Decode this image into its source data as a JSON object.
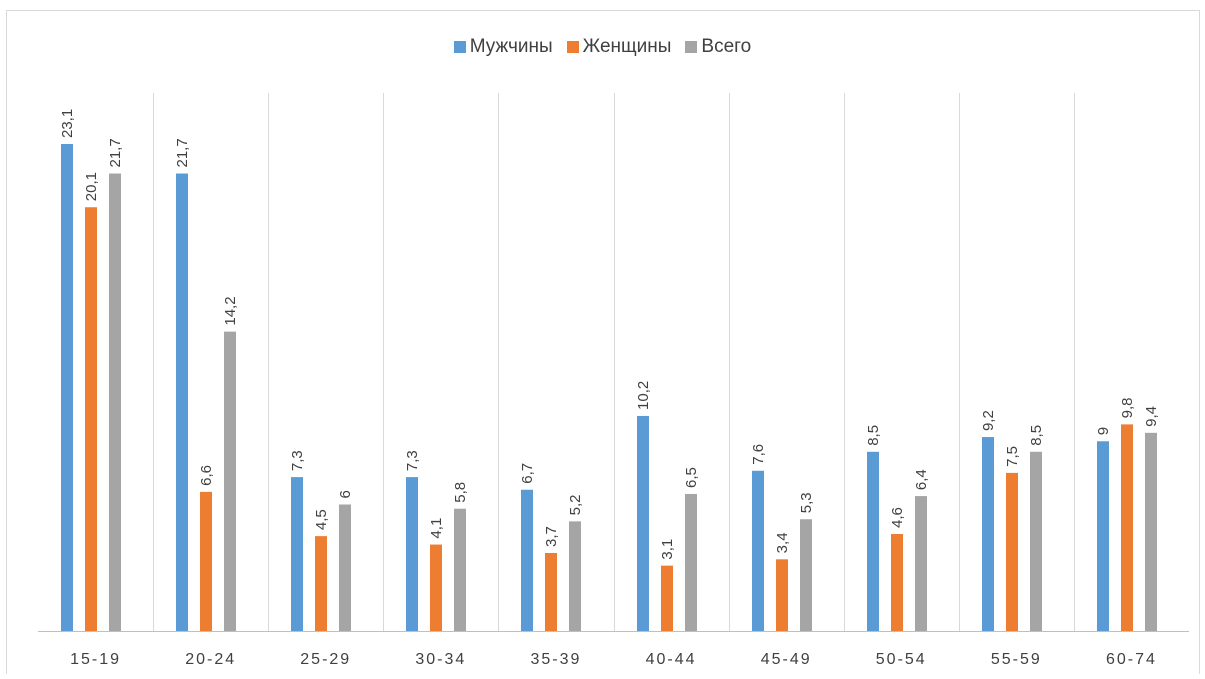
{
  "chart_data": {
    "type": "bar",
    "title": "",
    "xlabel": "",
    "ylabel": "",
    "categories": [
      "15-19",
      "20-24",
      "25-29",
      "30-34",
      "35-39",
      "40-44",
      "45-49",
      "50-54",
      "55-59",
      "60-74"
    ],
    "series": [
      {
        "name": "Мужчины",
        "color": "#5b9bd5",
        "values": [
          23.1,
          21.7,
          7.3,
          7.3,
          6.7,
          10.2,
          7.6,
          8.5,
          9.2,
          9
        ],
        "labels": [
          "23,1",
          "21,7",
          "7,3",
          "7,3",
          "6,7",
          "10,2",
          "7,6",
          "8,5",
          "9,2",
          "9"
        ]
      },
      {
        "name": "Женщины",
        "color": "#ed7d31",
        "values": [
          20.1,
          6.6,
          4.5,
          4.1,
          3.7,
          3.1,
          3.4,
          4.6,
          7.5,
          9.8
        ],
        "labels": [
          "20,1",
          "6,6",
          "4,5",
          "4,1",
          "3,7",
          "3,1",
          "3,4",
          "4,6",
          "7,5",
          "9,8"
        ]
      },
      {
        "name": "Всего",
        "color": "#a5a5a5",
        "values": [
          21.7,
          14.2,
          6,
          5.8,
          5.2,
          6.5,
          5.3,
          6.4,
          8.5,
          9.4
        ],
        "labels": [
          "21,7",
          "14,2",
          "6",
          "5,8",
          "5,2",
          "6,5",
          "5,3",
          "6,4",
          "8,5",
          "9,4"
        ]
      }
    ],
    "ylim": [
      0,
      23.1
    ],
    "grid": "vertical-category-separators",
    "legend": "top-center",
    "axis_color": "#bfbfbf",
    "grid_color": "#d9d9d9"
  }
}
